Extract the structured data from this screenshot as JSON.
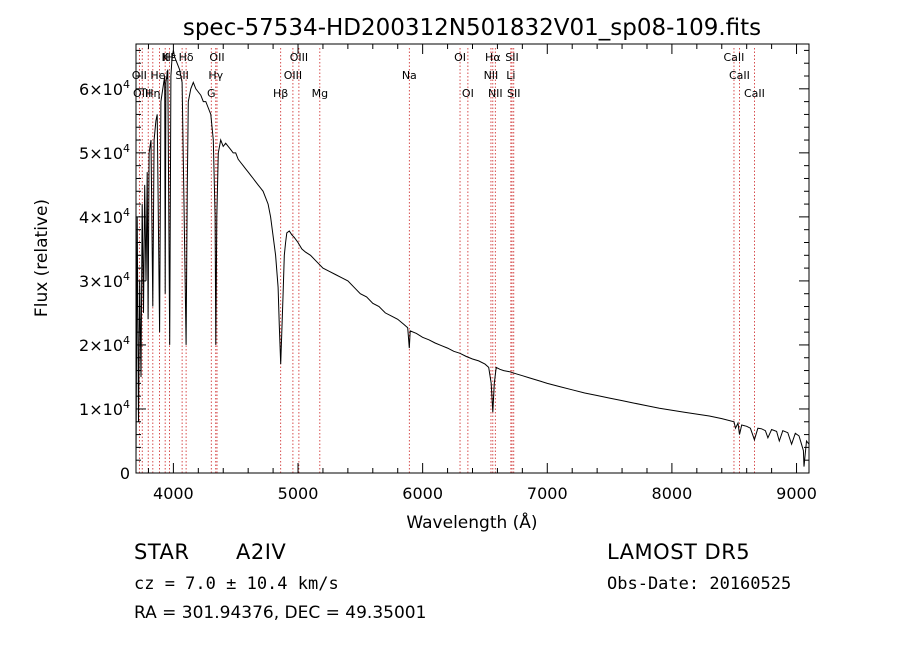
{
  "chart_data": {
    "type": "line",
    "title": "spec-57534-HD200312N501832V01_sp08-109.fits",
    "xlabel": "Wavelength (Å)",
    "ylabel": "Flux (relative)",
    "xlim": [
      3700,
      9100
    ],
    "ylim": [
      0,
      67000
    ],
    "x_ticks": [
      4000,
      5000,
      6000,
      7000,
      8000,
      9000
    ],
    "x_tick_labels": [
      "4000",
      "5000",
      "6000",
      "7000",
      "8000",
      "9000"
    ],
    "y_ticks": [
      0,
      10000,
      20000,
      30000,
      40000,
      50000,
      60000
    ],
    "y_tick_labels": [
      {
        "base": "0",
        "exp": ""
      },
      {
        "base": "1×10",
        "exp": "4"
      },
      {
        "base": "2×10",
        "exp": "4"
      },
      {
        "base": "3×10",
        "exp": "4"
      },
      {
        "base": "4×10",
        "exp": "4"
      },
      {
        "base": "5×10",
        "exp": "4"
      },
      {
        "base": "6×10",
        "exp": "4"
      }
    ],
    "grid": false,
    "series": [
      {
        "color": "#000000",
        "points": [
          [
            3700,
            2000
          ],
          [
            3710,
            40000
          ],
          [
            3720,
            8000
          ],
          [
            3730,
            30000
          ],
          [
            3740,
            15000
          ],
          [
            3750,
            42000
          ],
          [
            3760,
            25000
          ],
          [
            3770,
            45000
          ],
          [
            3780,
            30000
          ],
          [
            3790,
            47000
          ],
          [
            3797,
            24000
          ],
          [
            3805,
            50000
          ],
          [
            3820,
            52000
          ],
          [
            3835,
            26000
          ],
          [
            3845,
            52000
          ],
          [
            3860,
            55000
          ],
          [
            3870,
            56000
          ],
          [
            3889,
            22000
          ],
          [
            3900,
            58000
          ],
          [
            3915,
            60000
          ],
          [
            3930,
            62000
          ],
          [
            3934,
            28000
          ],
          [
            3940,
            61000
          ],
          [
            3955,
            63000
          ],
          [
            3970,
            20000
          ],
          [
            3980,
            62000
          ],
          [
            3990,
            65000
          ],
          [
            4000,
            66000
          ],
          [
            4010,
            65000
          ],
          [
            4030,
            64000
          ],
          [
            4050,
            63000
          ],
          [
            4070,
            61000
          ],
          [
            4085,
            42000
          ],
          [
            4102,
            20000
          ],
          [
            4112,
            45000
          ],
          [
            4120,
            58000
          ],
          [
            4140,
            60000
          ],
          [
            4160,
            61000
          ],
          [
            4180,
            60000
          ],
          [
            4200,
            59500
          ],
          [
            4220,
            59000
          ],
          [
            4240,
            58000
          ],
          [
            4260,
            58000
          ],
          [
            4280,
            57000
          ],
          [
            4300,
            56000
          ],
          [
            4320,
            52000
          ],
          [
            4335,
            40000
          ],
          [
            4340,
            20000
          ],
          [
            4348,
            40000
          ],
          [
            4360,
            50000
          ],
          [
            4380,
            52000
          ],
          [
            4400,
            51000
          ],
          [
            4420,
            51500
          ],
          [
            4440,
            51000
          ],
          [
            4460,
            50500
          ],
          [
            4480,
            50000
          ],
          [
            4500,
            50000
          ],
          [
            4520,
            49000
          ],
          [
            4540,
            48500
          ],
          [
            4560,
            48000
          ],
          [
            4580,
            47500
          ],
          [
            4600,
            47000
          ],
          [
            4620,
            46500
          ],
          [
            4640,
            46000
          ],
          [
            4660,
            45500
          ],
          [
            4680,
            45000
          ],
          [
            4700,
            44500
          ],
          [
            4720,
            44000
          ],
          [
            4740,
            43000
          ],
          [
            4760,
            42000
          ],
          [
            4780,
            40000
          ],
          [
            4800,
            37000
          ],
          [
            4820,
            34000
          ],
          [
            4840,
            29000
          ],
          [
            4850,
            23000
          ],
          [
            4861,
            17000
          ],
          [
            4870,
            22000
          ],
          [
            4880,
            28000
          ],
          [
            4890,
            34000
          ],
          [
            4900,
            36000
          ],
          [
            4910,
            37500
          ],
          [
            4930,
            37800
          ],
          [
            4950,
            37200
          ],
          [
            4970,
            36800
          ],
          [
            5000,
            36000
          ],
          [
            5030,
            35000
          ],
          [
            5060,
            34500
          ],
          [
            5100,
            34000
          ],
          [
            5150,
            33000
          ],
          [
            5200,
            32000
          ],
          [
            5250,
            31500
          ],
          [
            5300,
            31000
          ],
          [
            5350,
            30500
          ],
          [
            5400,
            30000
          ],
          [
            5450,
            29000
          ],
          [
            5500,
            28000
          ],
          [
            5550,
            27500
          ],
          [
            5600,
            26500
          ],
          [
            5650,
            26000
          ],
          [
            5700,
            25000
          ],
          [
            5750,
            24500
          ],
          [
            5800,
            24000
          ],
          [
            5850,
            23200
          ],
          [
            5880,
            22700
          ],
          [
            5893,
            19500
          ],
          [
            5900,
            22200
          ],
          [
            5950,
            21800
          ],
          [
            6000,
            21200
          ],
          [
            6050,
            20800
          ],
          [
            6100,
            20300
          ],
          [
            6150,
            19900
          ],
          [
            6200,
            19500
          ],
          [
            6250,
            19000
          ],
          [
            6300,
            18700
          ],
          [
            6350,
            18200
          ],
          [
            6400,
            17800
          ],
          [
            6450,
            17500
          ],
          [
            6500,
            17000
          ],
          [
            6530,
            16500
          ],
          [
            6550,
            14000
          ],
          [
            6563,
            9500
          ],
          [
            6575,
            14000
          ],
          [
            6590,
            16500
          ],
          [
            6620,
            16200
          ],
          [
            6650,
            16000
          ],
          [
            6700,
            15800
          ],
          [
            6750,
            15500
          ],
          [
            6800,
            15200
          ],
          [
            6850,
            14900
          ],
          [
            6900,
            14600
          ],
          [
            6950,
            14300
          ],
          [
            7000,
            14000
          ],
          [
            7100,
            13500
          ],
          [
            7200,
            13000
          ],
          [
            7300,
            12500
          ],
          [
            7400,
            12100
          ],
          [
            7500,
            11700
          ],
          [
            7600,
            11300
          ],
          [
            7700,
            10900
          ],
          [
            7800,
            10500
          ],
          [
            7900,
            10100
          ],
          [
            8000,
            9800
          ],
          [
            8100,
            9500
          ],
          [
            8200,
            9200
          ],
          [
            8300,
            8900
          ],
          [
            8400,
            8500
          ],
          [
            8498,
            8000
          ],
          [
            8510,
            7000
          ],
          [
            8530,
            7800
          ],
          [
            8542,
            6000
          ],
          [
            8560,
            7500
          ],
          [
            8600,
            7300
          ],
          [
            8630,
            7000
          ],
          [
            8662,
            5200
          ],
          [
            8690,
            7000
          ],
          [
            8720,
            6900
          ],
          [
            8750,
            6600
          ],
          [
            8770,
            5500
          ],
          [
            8800,
            6800
          ],
          [
            8840,
            6500
          ],
          [
            8862,
            5000
          ],
          [
            8890,
            6600
          ],
          [
            8930,
            6300
          ],
          [
            8960,
            4500
          ],
          [
            8990,
            6200
          ],
          [
            9020,
            5800
          ],
          [
            9040,
            4500
          ],
          [
            9055,
            3500
          ],
          [
            9060,
            1000
          ],
          [
            9080,
            5000
          ],
          [
            9100,
            4500
          ]
        ]
      }
    ],
    "annotations": [
      {
        "label": "Hε",
        "x": 3970,
        "row": 0
      },
      {
        "label": "K",
        "x": 3934,
        "row": 0
      },
      {
        "label": "H",
        "x": 3968,
        "row": 0
      },
      {
        "label": "Hδ",
        "x": 4102,
        "row": 0
      },
      {
        "label": "OII",
        "x": 4350,
        "row": 0
      },
      {
        "label": "OIII",
        "x": 5007,
        "row": 0
      },
      {
        "label": "OI",
        "x": 6300,
        "row": 0
      },
      {
        "label": "Hα",
        "x": 6563,
        "row": 0
      },
      {
        "label": "SII",
        "x": 6717,
        "row": 0
      },
      {
        "label": "CaII",
        "x": 8498,
        "row": 0
      },
      {
        "label": "OII",
        "x": 3727,
        "row": 1
      },
      {
        "label": "HeI",
        "x": 3889,
        "row": 1
      },
      {
        "label": "SII",
        "x": 4070,
        "row": 1
      },
      {
        "label": "Hγ",
        "x": 4340,
        "row": 1
      },
      {
        "label": "OIII",
        "x": 4959,
        "row": 1
      },
      {
        "label": "Na",
        "x": 5893,
        "row": 1
      },
      {
        "label": "NII",
        "x": 6548,
        "row": 1
      },
      {
        "label": "Li",
        "x": 6708,
        "row": 1
      },
      {
        "label": "CaII",
        "x": 8542,
        "row": 1
      },
      {
        "label": "OIII",
        "x": 3750,
        "row": 2
      },
      {
        "label": "Hη",
        "x": 3835,
        "row": 2
      },
      {
        "label": "G",
        "x": 4304,
        "row": 2
      },
      {
        "label": "Hβ",
        "x": 4861,
        "row": 2
      },
      {
        "label": "Mg",
        "x": 5175,
        "row": 2
      },
      {
        "label": "OI",
        "x": 6363,
        "row": 2
      },
      {
        "label": "NII",
        "x": 6583,
        "row": 2
      },
      {
        "label": "SII",
        "x": 6731,
        "row": 2
      },
      {
        "label": "CaII",
        "x": 8662,
        "row": 2
      }
    ],
    "line_marks": [
      3727,
      3750,
      3798,
      3835,
      3889,
      3934,
      3968,
      4070,
      4102,
      4304,
      4340,
      4350,
      4861,
      4959,
      5007,
      5175,
      5893,
      6300,
      6363,
      6548,
      6563,
      6583,
      6708,
      6717,
      6731,
      8498,
      8542,
      8662
    ],
    "line_color": "#cc2222"
  },
  "info": {
    "object_class": "STAR",
    "subclass": "A2IV",
    "redshift": "cz = 7.0 ± 10.4 km/s",
    "coords": "RA = 301.94376, DEC =  49.35001",
    "survey": "LAMOST DR5",
    "obs_date": "Obs-Date: 20160525"
  }
}
